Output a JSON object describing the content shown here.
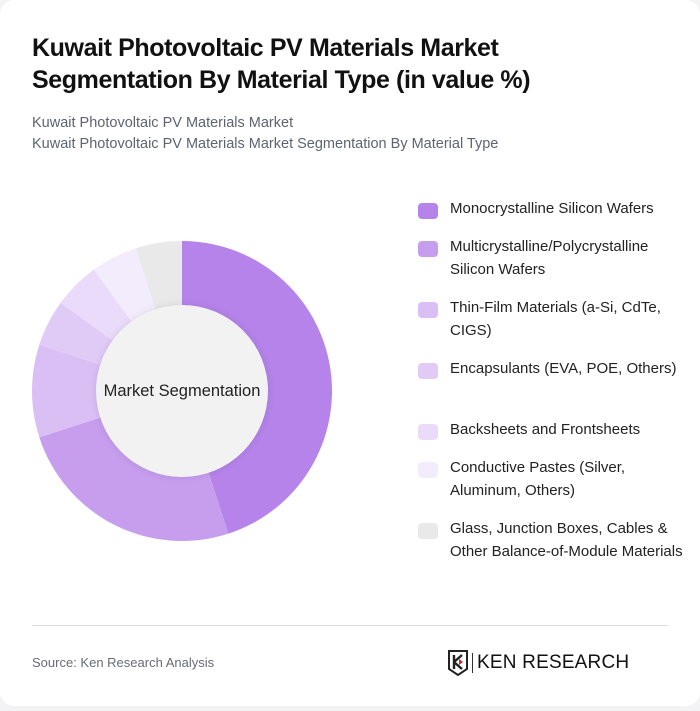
{
  "header": {
    "title": "Kuwait Photovoltaic PV Materials Market Segmentation By Material Type (in value %)",
    "subtitle_line1": "Kuwait Photovoltaic PV Materials Market",
    "subtitle_line2": "Kuwait Photovoltaic PV Materials Market Segmentation By Material Type"
  },
  "chart": {
    "center_label": "Market Segmentation"
  },
  "legend": {
    "items": [
      {
        "label": "Monocrystalline Silicon Wafers",
        "color": "#b583ea"
      },
      {
        "label": "Multicrystalline/Polycrystalline Silicon Wafers",
        "color": "#c79dee"
      },
      {
        "label": "Thin-Film Materials (a-Si, CdTe, CIGS)",
        "color": "#dabff5"
      },
      {
        "label": "Encapsulants (EVA, POE, Others)",
        "color": "#e0cbf6"
      },
      {
        "label": "Backsheets and Frontsheets",
        "color": "#e9dbf9"
      },
      {
        "label": "Conductive Pastes (Silver, Aluminum, Others)",
        "color": "#f3ecfc"
      },
      {
        "label": "Glass, Junction Boxes, Cables & Other Balance-of-Module Materials",
        "color": "#e9e9e9"
      }
    ]
  },
  "footer": {
    "source": "Source: Ken Research Analysis",
    "logo_text": "KEN RESEARCH"
  },
  "chart_data": {
    "type": "pie",
    "title": "Kuwait Photovoltaic PV Materials Market Segmentation By Material Type (in value %)",
    "subtitle": "Kuwait Photovoltaic PV Materials Market Segmentation By Material Type",
    "center_label": "Market Segmentation",
    "donut": true,
    "categories": [
      "Monocrystalline Silicon Wafers",
      "Multicrystalline/Polycrystalline Silicon Wafers",
      "Thin-Film Materials (a-Si, CdTe, CIGS)",
      "Encapsulants (EVA, POE, Others)",
      "Backsheets and Frontsheets",
      "Conductive Pastes (Silver, Aluminum, Others)",
      "Glass, Junction Boxes, Cables & Other Balance-of-Module Materials"
    ],
    "values": [
      45,
      25,
      10,
      5,
      5,
      5,
      5
    ],
    "colors": [
      "#b583ea",
      "#c79dee",
      "#dabff5",
      "#e0cbf6",
      "#e9dbf9",
      "#f3ecfc",
      "#e9e9e9"
    ],
    "legend_position": "right",
    "source": "Source: Ken Research Analysis"
  }
}
